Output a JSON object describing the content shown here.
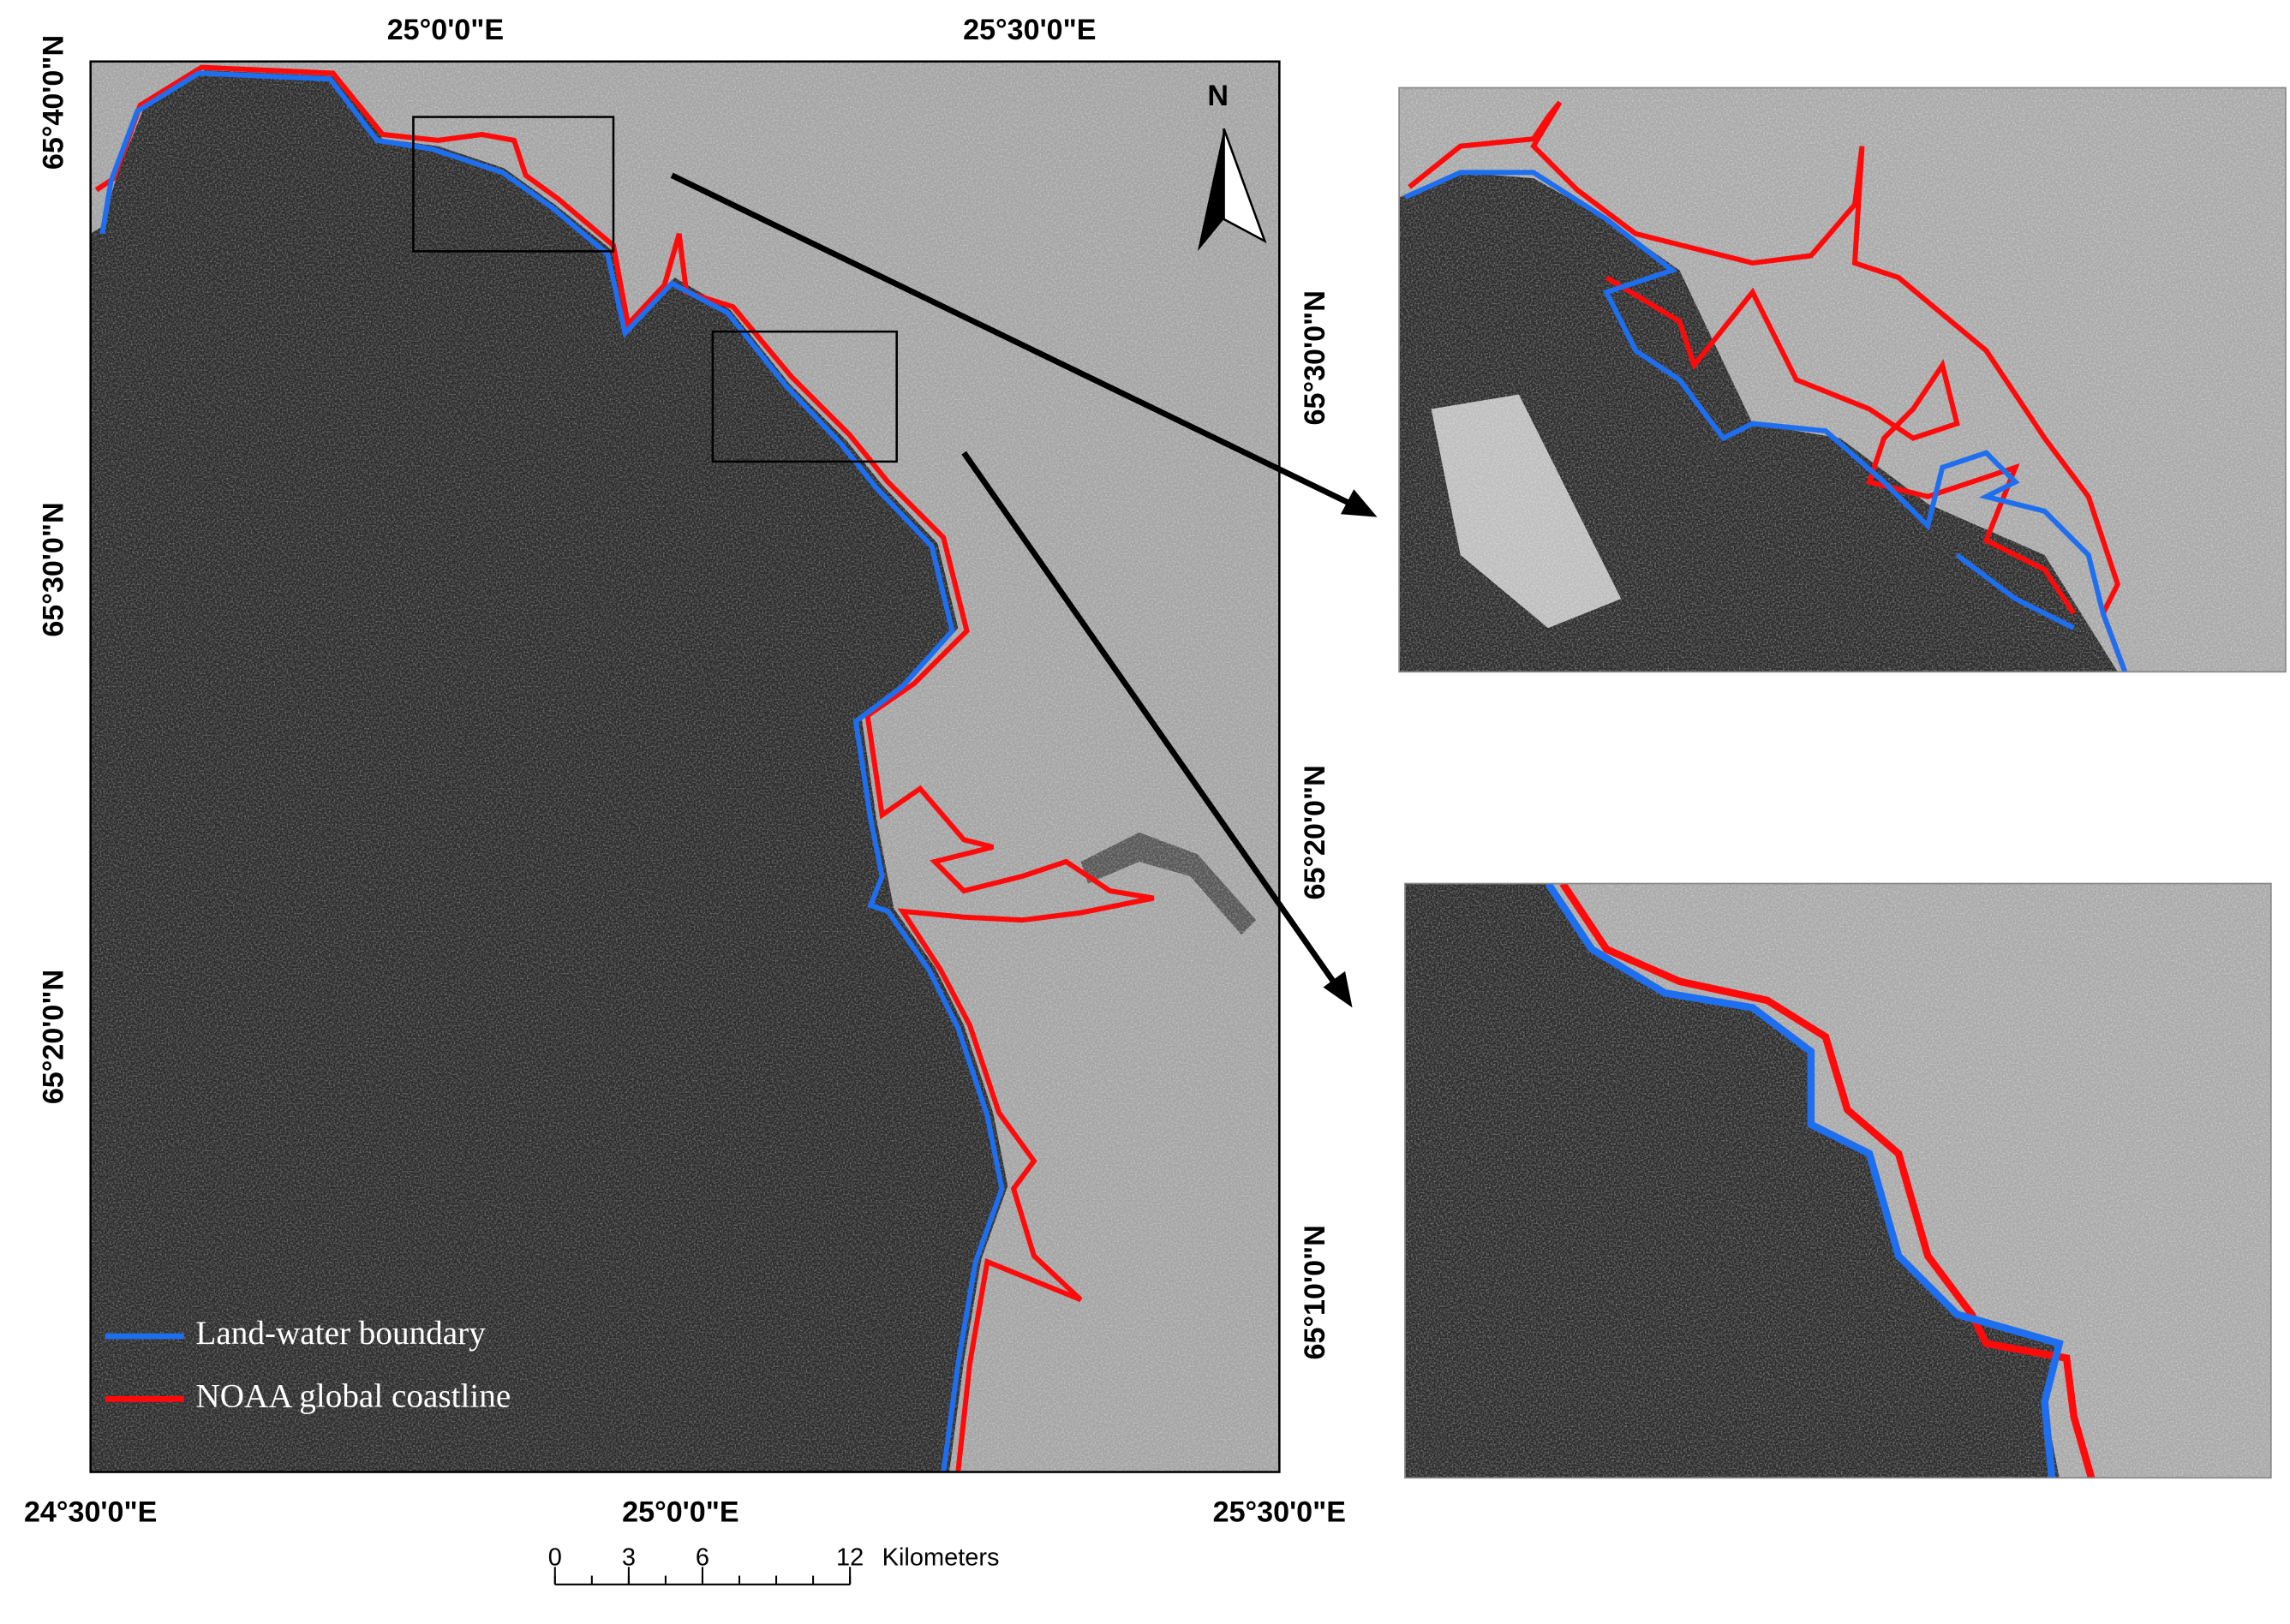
{
  "map": {
    "top_labels": [
      "25°0'0\"E",
      "25°30'0\"E"
    ],
    "bottom_labels": [
      "24°30'0\"E",
      "25°0'0\"E",
      "25°30'0\"E"
    ],
    "left_labels": [
      "65°40'0\"N",
      "65°30'0\"N",
      "65°20'0\"N"
    ],
    "right_labels": [
      "65°30'0\"N",
      "65°20'0\"N",
      "65°10'0\"N"
    ],
    "north": "N",
    "legend": [
      {
        "name": "Land-water boundary",
        "color": "#1e6ff0"
      },
      {
        "name": "NOAA global coastline",
        "color": "#ff0a0a"
      }
    ],
    "scale_bar": {
      "ticks": [
        0,
        3,
        6,
        12
      ],
      "unit": "Kilometers"
    }
  }
}
